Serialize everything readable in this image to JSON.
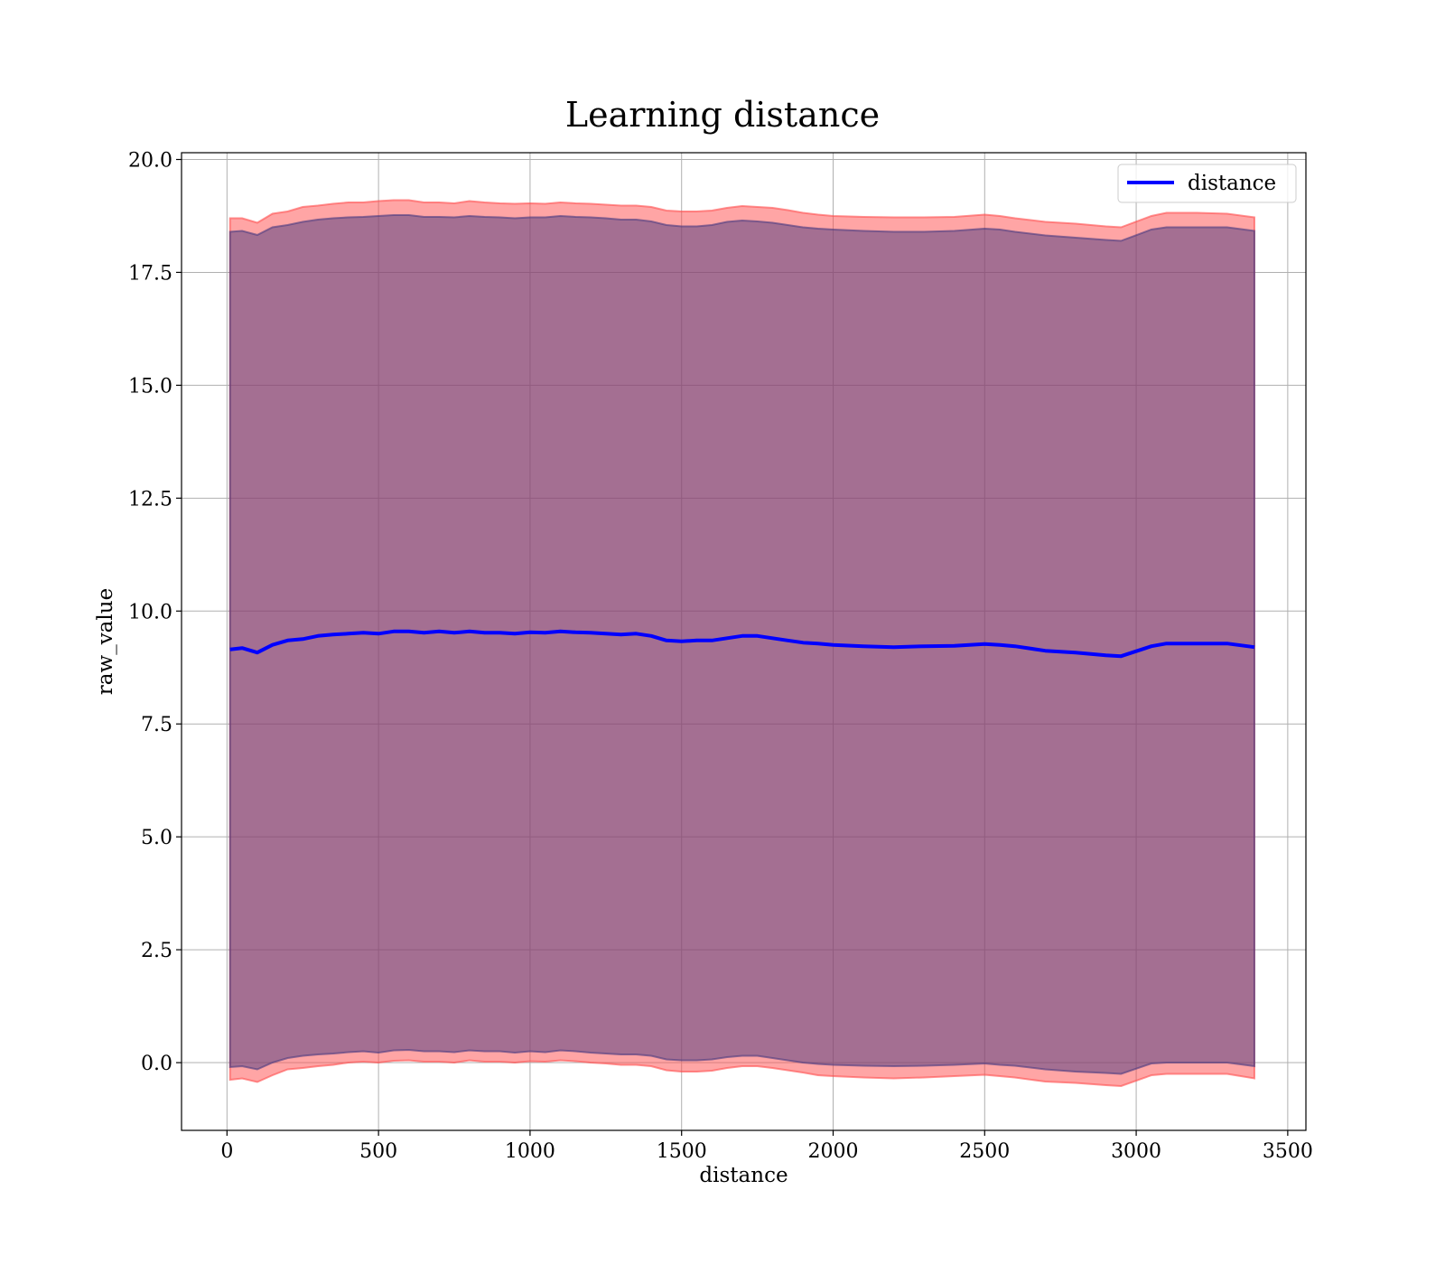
{
  "chart_data": {
    "type": "line",
    "title": "Learning distance",
    "xlabel": "distance",
    "ylabel": "raw_value",
    "xlim": [
      -150,
      3560
    ],
    "ylim": [
      -1.5,
      20.15
    ],
    "xticks": [
      0,
      500,
      1000,
      1500,
      2000,
      2500,
      3000,
      3500
    ],
    "xtick_labels": [
      "0",
      "500",
      "1000",
      "1500",
      "2000",
      "2500",
      "3000",
      "3500"
    ],
    "yticks": [
      0.0,
      2.5,
      5.0,
      7.5,
      10.0,
      12.5,
      15.0,
      17.5,
      20.0
    ],
    "ytick_labels": [
      "0.0",
      "2.5",
      "5.0",
      "7.5",
      "10.0",
      "12.5",
      "15.0",
      "17.5",
      "20.0"
    ],
    "grid": true,
    "legend_position": "top-right",
    "x": [
      10,
      50,
      100,
      150,
      200,
      250,
      300,
      350,
      400,
      450,
      500,
      550,
      600,
      650,
      700,
      750,
      800,
      850,
      900,
      950,
      1000,
      1050,
      1100,
      1150,
      1200,
      1250,
      1300,
      1350,
      1400,
      1450,
      1500,
      1550,
      1600,
      1650,
      1700,
      1750,
      1800,
      1850,
      1900,
      1950,
      2000,
      2100,
      2200,
      2300,
      2400,
      2500,
      2550,
      2600,
      2700,
      2800,
      2900,
      2950,
      3050,
      3100,
      3200,
      3300,
      3390
    ],
    "series": [
      {
        "name": "distance",
        "color": "#0000ff",
        "values": [
          9.15,
          9.18,
          9.08,
          9.25,
          9.35,
          9.38,
          9.45,
          9.48,
          9.5,
          9.52,
          9.5,
          9.55,
          9.55,
          9.52,
          9.55,
          9.52,
          9.55,
          9.52,
          9.52,
          9.5,
          9.53,
          9.52,
          9.55,
          9.53,
          9.52,
          9.5,
          9.48,
          9.5,
          9.45,
          9.35,
          9.33,
          9.35,
          9.35,
          9.4,
          9.45,
          9.45,
          9.4,
          9.35,
          9.3,
          9.28,
          9.25,
          9.22,
          9.2,
          9.22,
          9.23,
          9.27,
          9.25,
          9.22,
          9.12,
          9.08,
          9.02,
          9.0,
          9.22,
          9.28,
          9.28,
          9.28,
          9.2
        ]
      }
    ],
    "bands": [
      {
        "color": "#ff4c4c",
        "upper": [
          18.7,
          18.7,
          18.6,
          18.8,
          18.85,
          18.95,
          18.98,
          19.02,
          19.05,
          19.05,
          19.08,
          19.1,
          19.1,
          19.05,
          19.05,
          19.03,
          19.08,
          19.05,
          19.03,
          19.02,
          19.03,
          19.02,
          19.05,
          19.03,
          19.02,
          19.0,
          18.98,
          18.98,
          18.95,
          18.87,
          18.85,
          18.85,
          18.87,
          18.93,
          18.97,
          18.95,
          18.93,
          18.88,
          18.82,
          18.78,
          18.75,
          18.73,
          18.72,
          18.72,
          18.73,
          18.78,
          18.75,
          18.7,
          18.62,
          18.58,
          18.52,
          18.5,
          18.75,
          18.82,
          18.82,
          18.8,
          18.72
        ],
        "lower": [
          -0.38,
          -0.35,
          -0.43,
          -0.28,
          -0.15,
          -0.12,
          -0.08,
          -0.05,
          0.0,
          0.02,
          0.0,
          0.04,
          0.05,
          0.02,
          0.02,
          0.0,
          0.05,
          0.02,
          0.02,
          0.0,
          0.03,
          0.02,
          0.05,
          0.03,
          0.0,
          -0.02,
          -0.05,
          -0.05,
          -0.08,
          -0.17,
          -0.2,
          -0.2,
          -0.18,
          -0.12,
          -0.08,
          -0.08,
          -0.12,
          -0.17,
          -0.22,
          -0.28,
          -0.3,
          -0.33,
          -0.35,
          -0.33,
          -0.3,
          -0.27,
          -0.3,
          -0.33,
          -0.42,
          -0.45,
          -0.5,
          -0.52,
          -0.28,
          -0.25,
          -0.25,
          -0.25,
          -0.35
        ]
      },
      {
        "color": "#4a3a80",
        "upper": [
          18.4,
          18.42,
          18.33,
          18.5,
          18.55,
          18.62,
          18.67,
          18.7,
          18.72,
          18.73,
          18.75,
          18.77,
          18.77,
          18.73,
          18.73,
          18.72,
          18.75,
          18.73,
          18.72,
          18.7,
          18.72,
          18.72,
          18.75,
          18.73,
          18.72,
          18.7,
          18.67,
          18.67,
          18.63,
          18.55,
          18.52,
          18.52,
          18.55,
          18.62,
          18.65,
          18.63,
          18.6,
          18.55,
          18.5,
          18.47,
          18.45,
          18.42,
          18.4,
          18.4,
          18.42,
          18.47,
          18.45,
          18.4,
          18.32,
          18.27,
          18.22,
          18.2,
          18.45,
          18.5,
          18.5,
          18.5,
          18.42
        ],
        "lower": [
          -0.1,
          -0.08,
          -0.15,
          0.0,
          0.1,
          0.15,
          0.18,
          0.2,
          0.23,
          0.25,
          0.22,
          0.27,
          0.28,
          0.25,
          0.25,
          0.23,
          0.27,
          0.25,
          0.25,
          0.22,
          0.25,
          0.23,
          0.27,
          0.25,
          0.22,
          0.2,
          0.18,
          0.18,
          0.15,
          0.07,
          0.05,
          0.05,
          0.07,
          0.12,
          0.15,
          0.15,
          0.1,
          0.05,
          0.0,
          -0.03,
          -0.05,
          -0.07,
          -0.08,
          -0.07,
          -0.05,
          -0.02,
          -0.05,
          -0.07,
          -0.15,
          -0.2,
          -0.23,
          -0.25,
          -0.02,
          0.0,
          0.0,
          0.0,
          -0.08
        ]
      }
    ]
  }
}
